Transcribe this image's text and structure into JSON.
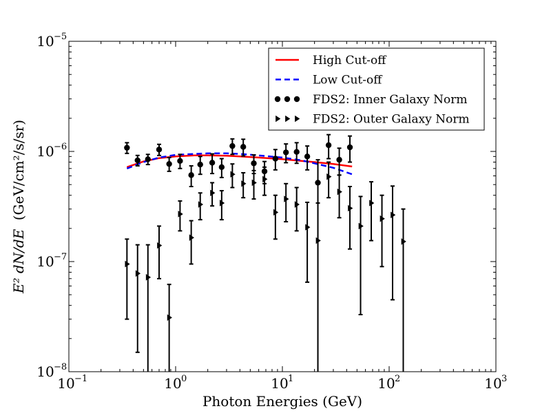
{
  "chart_data": {
    "type": "scatter",
    "title": "",
    "xlabel": "Photon Energies (GeV)",
    "ylabel": "(GeV/cm²/s/sr)",
    "ylabel_prefix": "E² dN/dE",
    "xscale": "log",
    "yscale": "log",
    "xlim": [
      0.1,
      1000
    ],
    "ylim": [
      1e-08,
      1e-05
    ],
    "x_ticks": [
      {
        "value": 0.1,
        "base": "10",
        "exp": "−1"
      },
      {
        "value": 1,
        "base": "10",
        "exp": "0"
      },
      {
        "value": 10,
        "base": "10",
        "exp": "1"
      },
      {
        "value": 100,
        "base": "10",
        "exp": "2"
      },
      {
        "value": 1000,
        "base": "10",
        "exp": "3"
      }
    ],
    "y_ticks": [
      {
        "value": 1e-08,
        "base": "10",
        "exp": "−8"
      },
      {
        "value": 1e-07,
        "base": "10",
        "exp": "−7"
      },
      {
        "value": 1e-06,
        "base": "10",
        "exp": "−6"
      },
      {
        "value": 1e-05,
        "base": "10",
        "exp": "−5"
      }
    ],
    "legend_position": "top-right",
    "series": [
      {
        "name": "High Cut-off",
        "kind": "line",
        "color": "#ff0000",
        "dash": "solid",
        "x": [
          0.35,
          0.5,
          0.7,
          1.0,
          1.5,
          2.0,
          3.0,
          4.0,
          6.0,
          10.0,
          15.0,
          20.0,
          30.0,
          45.0
        ],
        "y": [
          7.2e-07,
          8.1e-07,
          8.7e-07,
          9e-07,
          9.2e-07,
          9.2e-07,
          9.15e-07,
          9e-07,
          8.8e-07,
          8.5e-07,
          8.2e-07,
          8e-07,
          7.7e-07,
          7.3e-07
        ]
      },
      {
        "name": "Low Cut-off",
        "kind": "line",
        "color": "#0000ff",
        "dash": "dashed",
        "x": [
          0.35,
          0.5,
          0.7,
          1.0,
          1.5,
          2.0,
          3.0,
          4.0,
          6.0,
          10.0,
          15.0,
          20.0,
          30.0,
          45.0
        ],
        "y": [
          7e-07,
          8e-07,
          8.8e-07,
          9.3e-07,
          9.5e-07,
          9.6e-07,
          9.6e-07,
          9.5e-07,
          9.2e-07,
          8.8e-07,
          8.3e-07,
          7.8e-07,
          7.1e-07,
          6.2e-07
        ]
      },
      {
        "name": "FDS2: Inner Galaxy Norm",
        "kind": "points",
        "marker": "circle",
        "color": "#000000",
        "x": [
          0.35,
          0.44,
          0.55,
          0.7,
          0.87,
          1.1,
          1.4,
          1.7,
          2.2,
          2.7,
          3.4,
          4.3,
          5.4,
          6.8,
          8.6,
          10.8,
          13.6,
          17.1,
          21.5,
          27.1,
          34.1,
          42.9
        ],
        "y": [
          1.08e-06,
          8.3e-07,
          8.5e-07,
          1.04e-06,
          7.7e-07,
          8.2e-07,
          6.1e-07,
          7.6e-07,
          7.9e-07,
          7.2e-07,
          1.12e-06,
          1.1e-06,
          7.8e-07,
          6.6e-07,
          8.6e-07,
          9.8e-07,
          9.9e-07,
          9e-07,
          5.2e-07,
          1.14e-06,
          8.4e-07,
          1.09e-06
        ],
        "ylow": [
          9.6e-07,
          7.4e-07,
          7.6e-07,
          9.2e-07,
          6.6e-07,
          7e-07,
          4.8e-07,
          6.2e-07,
          6.3e-07,
          5.8e-07,
          9.4e-07,
          9.1e-07,
          6.3e-07,
          5.1e-07,
          6.8e-07,
          7.9e-07,
          7.8e-07,
          6.8e-07,
          1e-08,
          8.6e-07,
          6.1e-07,
          8e-07
        ],
        "yhigh": [
          1.2e-06,
          9.2e-07,
          9.4e-07,
          1.16e-06,
          8.8e-07,
          9.4e-07,
          7.4e-07,
          9e-07,
          9.5e-07,
          8.6e-07,
          1.3e-06,
          1.29e-06,
          9.3e-07,
          8.1e-07,
          1.04e-06,
          1.17e-06,
          1.2e-06,
          1.12e-06,
          8.4e-07,
          1.42e-06,
          1.07e-06,
          1.38e-06
        ]
      },
      {
        "name": "FDS2: Outer Galaxy Norm",
        "kind": "points",
        "marker": "triangle-right",
        "color": "#000000",
        "x": [
          0.35,
          0.44,
          0.55,
          0.7,
          0.87,
          1.1,
          1.4,
          1.7,
          2.2,
          2.7,
          3.4,
          4.3,
          5.4,
          6.8,
          8.6,
          10.8,
          13.6,
          17.1,
          21.5,
          27.1,
          34.1,
          42.9,
          54.0,
          68.0,
          85.6,
          107.7,
          135.6
        ],
        "y": [
          9.5e-08,
          7.8e-08,
          7.2e-08,
          1.4e-07,
          3.1e-08,
          2.7e-07,
          1.65e-07,
          3.3e-07,
          4.2e-07,
          3.4e-07,
          6.2e-07,
          5.1e-07,
          5.2e-07,
          5.6e-07,
          2.8e-07,
          3.7e-07,
          3.3e-07,
          2.05e-07,
          1.55e-07,
          5.9e-07,
          4.3e-07,
          3.05e-07,
          2.1e-07,
          3.4e-07,
          2.45e-07,
          2.65e-07,
          1.52e-07
        ],
        "ylow": [
          3e-08,
          1.5e-08,
          1e-08,
          7e-08,
          1e-08,
          1.9e-07,
          9.5e-08,
          2.4e-07,
          3.2e-07,
          2.4e-07,
          4.7e-07,
          3.8e-07,
          3.7e-07,
          4e-07,
          1.6e-07,
          2.3e-07,
          1.9e-07,
          6.5e-08,
          1e-08,
          3.8e-07,
          2.5e-07,
          1.3e-07,
          3.3e-08,
          1.55e-07,
          9e-08,
          4.5e-08,
          1e-08
        ],
        "yhigh": [
          1.6e-07,
          1.42e-07,
          1.42e-07,
          2.1e-07,
          6.2e-08,
          3.55e-07,
          2.35e-07,
          4.2e-07,
          5.2e-07,
          4.4e-07,
          7.7e-07,
          6.4e-07,
          6.7e-07,
          7.2e-07,
          4e-07,
          5.1e-07,
          4.7e-07,
          3.45e-07,
          3.4e-07,
          8e-07,
          6.1e-07,
          4.8e-07,
          3.9e-07,
          5.3e-07,
          4e-07,
          4.85e-07,
          3e-07
        ]
      }
    ]
  }
}
